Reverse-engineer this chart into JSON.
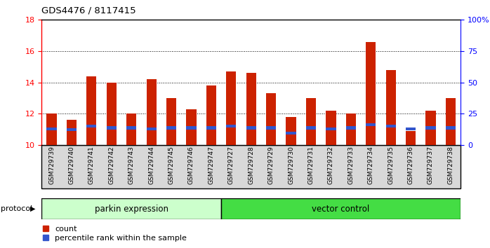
{
  "title": "GDS4476 / 8117415",
  "samples": [
    "GSM729739",
    "GSM729740",
    "GSM729741",
    "GSM729742",
    "GSM729743",
    "GSM729744",
    "GSM729745",
    "GSM729746",
    "GSM729747",
    "GSM729727",
    "GSM729728",
    "GSM729729",
    "GSM729730",
    "GSM729731",
    "GSM729732",
    "GSM729733",
    "GSM729734",
    "GSM729735",
    "GSM729736",
    "GSM729737",
    "GSM729738"
  ],
  "count_values": [
    12.0,
    11.6,
    14.4,
    14.0,
    12.0,
    14.2,
    13.0,
    12.3,
    13.8,
    14.7,
    14.6,
    13.3,
    11.8,
    13.0,
    12.2,
    12.0,
    16.6,
    14.8,
    10.9,
    12.2,
    13.0
  ],
  "percentile_values": [
    11.05,
    11.0,
    11.2,
    11.1,
    11.1,
    11.05,
    11.1,
    11.1,
    11.1,
    11.2,
    11.1,
    11.1,
    10.75,
    11.1,
    11.05,
    11.1,
    11.3,
    11.2,
    11.05,
    11.1,
    11.1
  ],
  "parkin_count": 9,
  "vector_count": 12,
  "ylim_left": [
    10,
    18
  ],
  "ylim_right": [
    0,
    100
  ],
  "yticks_left": [
    10,
    12,
    14,
    16,
    18
  ],
  "yticks_right": [
    0,
    25,
    50,
    75,
    100
  ],
  "ytick_labels_right": [
    "0",
    "25",
    "50",
    "75",
    "100%"
  ],
  "bar_color": "#cc2200",
  "blue_color": "#3355cc",
  "parkin_bg": "#ccffcc",
  "vector_bg": "#44dd44",
  "tick_bg": "#d8d8d8",
  "legend_count_label": "count",
  "legend_pct_label": "percentile rank within the sample",
  "protocol_label": "protocol",
  "parkin_label": "parkin expression",
  "vector_label": "vector control",
  "bar_width": 0.5
}
